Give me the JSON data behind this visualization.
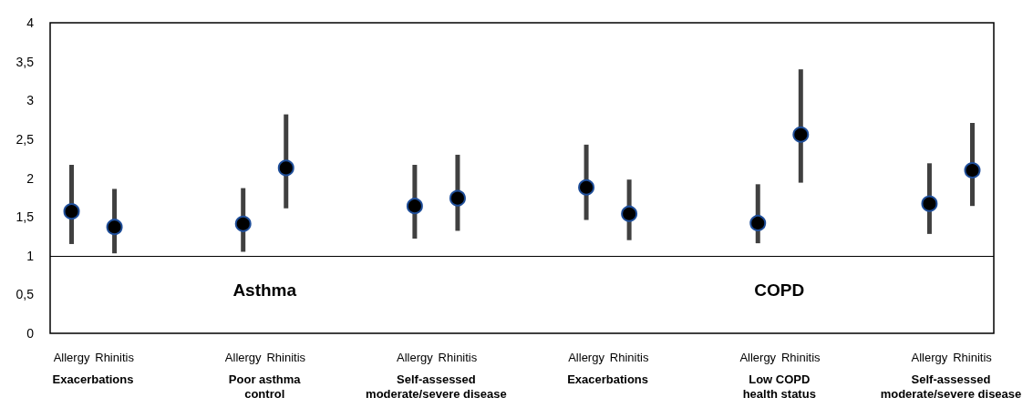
{
  "chart_data": {
    "type": "scatter",
    "categories": [
      "Allergy",
      "Rhinitis",
      null,
      null,
      "Allergy",
      "Rhinitis",
      null,
      null,
      "Allergy",
      "Rhinitis",
      null,
      null,
      "Allergy",
      "Rhinitis",
      null,
      null,
      "Allergy",
      "Rhinitis",
      null,
      null,
      "Allergy",
      "Rhinitis"
    ],
    "series": [
      {
        "color": "#000000",
        "values": [
          1.57,
          1.37,
          null,
          null,
          1.41,
          2.13,
          null,
          null,
          1.64,
          1.74,
          null,
          null,
          1.88,
          1.54,
          null,
          null,
          1.42,
          2.56,
          null,
          null,
          1.67,
          2.1
        ],
        "errors": [
          [
            1.15,
            2.17
          ],
          [
            1.03,
            1.86
          ],
          null,
          null,
          [
            1.05,
            1.87
          ],
          [
            1.61,
            2.82
          ],
          null,
          null,
          [
            1.22,
            2.17
          ],
          [
            1.32,
            2.3
          ],
          null,
          null,
          [
            1.46,
            2.43
          ],
          [
            1.2,
            1.98
          ],
          null,
          null,
          [
            1.16,
            1.92
          ],
          [
            1.94,
            3.4
          ],
          null,
          null,
          [
            1.28,
            2.19
          ],
          [
            1.64,
            2.71
          ]
        ]
      }
    ],
    "ylim": [
      0,
      4
    ],
    "yticks": [
      0,
      {
        "value": 0.5,
        "label": "0,5"
      },
      1,
      {
        "value": 1.5,
        "label": "1,5"
      },
      2,
      {
        "value": 2.5,
        "label": "2,5"
      },
      3,
      {
        "value": 3.5,
        "label": "3,5"
      },
      4
    ],
    "ref_lines": [
      {
        "axis": "y",
        "value": 1,
        "color": "#000000"
      }
    ],
    "marker": "circle",
    "grid": false,
    "annotations": [
      "Exacerbations",
      "Poor asthma\ncontrol",
      "Self-assessed\nmoderate/severe disease",
      "Exacerbations",
      "Low COPD\nhealth status",
      "Self-assessed\nmoderate/severe disease",
      "Asthma",
      "COPD"
    ]
  }
}
